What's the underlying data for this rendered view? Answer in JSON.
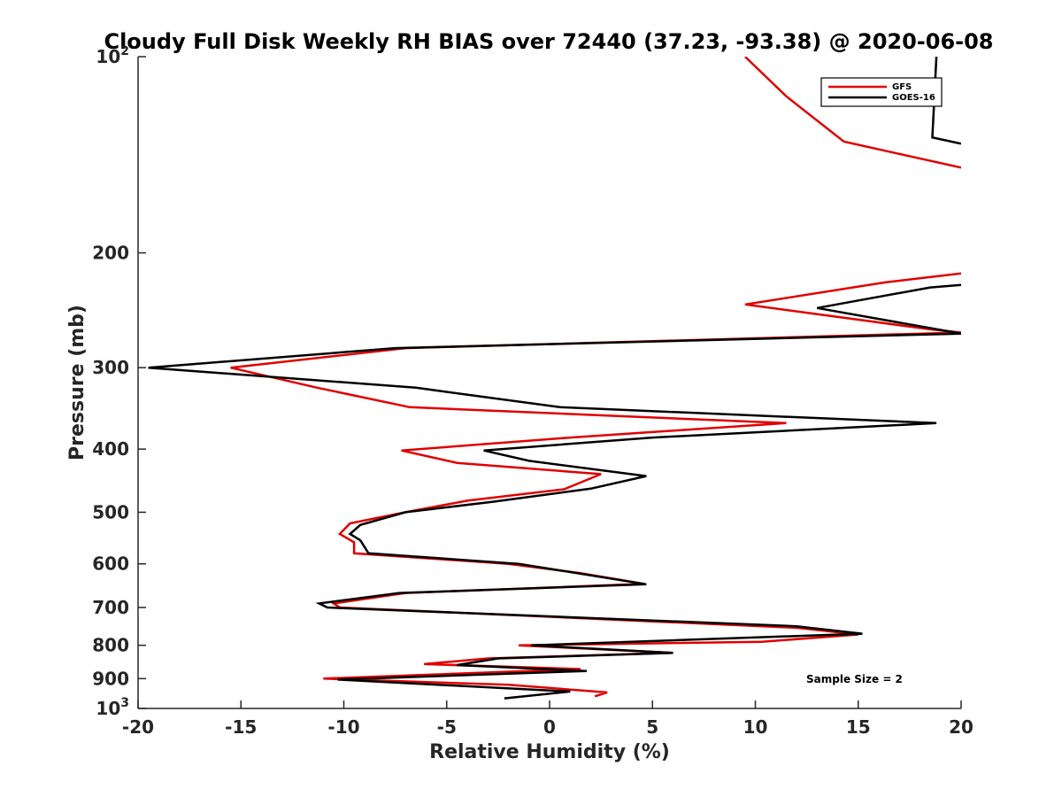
{
  "chart_data": {
    "type": "line",
    "title": "Cloudy Full Disk Weekly RH BIAS over 72440 (37.23, -93.38) @ 2020-06-08",
    "xlabel": "Relative Humidity (%)",
    "ylabel": "Pressure (mb)",
    "xlim": [
      -20,
      20
    ],
    "ylim": [
      100,
      1000
    ],
    "yscale": "log",
    "y_reversed": true,
    "grid": false,
    "legend_position": "top-right",
    "annotation": "Sample Size = 2",
    "xticks": [
      {
        "value": -20,
        "label": "-20"
      },
      {
        "value": -15,
        "label": "-15"
      },
      {
        "value": -10,
        "label": "-10"
      },
      {
        "value": -5,
        "label": "-5"
      },
      {
        "value": 0,
        "label": "0"
      },
      {
        "value": 5,
        "label": "5"
      },
      {
        "value": 10,
        "label": "10"
      },
      {
        "value": 15,
        "label": "15"
      },
      {
        "value": 20,
        "label": "20"
      }
    ],
    "yticks": [
      {
        "value": 100,
        "base": "10",
        "exp": "2"
      },
      {
        "value": 200,
        "label": "200"
      },
      {
        "value": 300,
        "label": "300"
      },
      {
        "value": 400,
        "label": "400"
      },
      {
        "value": 500,
        "label": "500"
      },
      {
        "value": 600,
        "label": "600"
      },
      {
        "value": 700,
        "label": "700"
      },
      {
        "value": 800,
        "label": "800"
      },
      {
        "value": 900,
        "label": "900"
      },
      {
        "value": 1000,
        "base": "10",
        "exp": "3"
      }
    ],
    "series": [
      {
        "name": "GFS",
        "color": "#e00000",
        "segments": [
          [
            [
              9.5,
              100
            ],
            [
              11.5,
              115
            ],
            [
              14.3,
              135
            ],
            [
              20,
              148
            ]
          ],
          [
            [
              20,
              215
            ],
            [
              16.3,
              222
            ],
            [
              9.5,
              240
            ],
            [
              18.5,
              262
            ],
            [
              20,
              265
            ],
            [
              -7,
              280
            ],
            [
              -15.5,
              300
            ],
            [
              -11.3,
              322
            ],
            [
              -6.8,
              345
            ],
            [
              11.5,
              365
            ],
            [
              1,
              384
            ],
            [
              -7.2,
              402
            ],
            [
              -4.5,
              420
            ],
            [
              2.5,
              437
            ],
            [
              0.7,
              461
            ],
            [
              -4,
              480
            ],
            [
              -7,
              500
            ],
            [
              -9.7,
              520
            ],
            [
              -10.2,
              540
            ],
            [
              -9.5,
              556
            ],
            [
              -9.5,
              578
            ],
            [
              -2,
              600
            ],
            [
              1.5,
              620
            ],
            [
              4.6,
              644
            ],
            [
              -7,
              665
            ],
            [
              -10.5,
              690
            ],
            [
              -10.2,
              700
            ],
            [
              12,
              752
            ],
            [
              15,
              770
            ],
            [
              10.3,
              790
            ],
            [
              -1.5,
              800
            ],
            [
              6,
              822
            ],
            [
              -3,
              838
            ],
            [
              -6.1,
              855
            ],
            [
              1.5,
              870
            ],
            [
              -11,
              900
            ],
            [
              -2,
              920
            ],
            [
              2.8,
              945
            ],
            [
              2.2,
              958
            ]
          ]
        ]
      },
      {
        "name": "GOES-16",
        "color": "#000000",
        "segments": [
          [
            [
              18.8,
              100
            ],
            [
              18.6,
              133
            ],
            [
              20,
              136
            ]
          ],
          [
            [
              20,
              224
            ],
            [
              18.5,
              226
            ],
            [
              13,
              243
            ],
            [
              20,
              266
            ],
            [
              -7.5,
              280
            ],
            [
              -19.5,
              300
            ],
            [
              -6.5,
              322
            ],
            [
              0.5,
              345
            ],
            [
              18.8,
              365
            ],
            [
              5,
              384
            ],
            [
              -3.2,
              402
            ],
            [
              -1,
              417
            ],
            [
              4.7,
              440
            ],
            [
              2,
              460
            ],
            [
              -2.8,
              482
            ],
            [
              -7,
              500
            ],
            [
              -9.2,
              523
            ],
            [
              -9.7,
              540
            ],
            [
              -9.2,
              552
            ],
            [
              -8.8,
              578
            ],
            [
              -1.5,
              600
            ],
            [
              4.7,
              645
            ],
            [
              -7.3,
              665
            ],
            [
              -11.2,
              690
            ],
            [
              -10.8,
              700
            ],
            [
              12,
              748
            ],
            [
              15.2,
              768
            ],
            [
              -0.9,
              800
            ],
            [
              6,
              822
            ],
            [
              -2.5,
              838
            ],
            [
              -4.5,
              858
            ],
            [
              1.8,
              876
            ],
            [
              -10.3,
              903
            ],
            [
              1,
              942
            ],
            [
              -2.2,
              965
            ]
          ]
        ]
      }
    ]
  }
}
